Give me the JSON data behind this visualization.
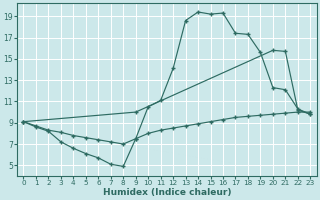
{
  "background_color": "#cce8ea",
  "grid_color": "#ffffff",
  "line_color": "#2e6b62",
  "xlabel": "Humidex (Indice chaleur)",
  "xlim": [
    -0.5,
    23.5
  ],
  "ylim": [
    4.0,
    20.2
  ],
  "yticks": [
    5,
    7,
    9,
    11,
    13,
    15,
    17,
    19
  ],
  "xticks": [
    0,
    1,
    2,
    3,
    4,
    5,
    6,
    7,
    8,
    9,
    10,
    11,
    12,
    13,
    14,
    15,
    16,
    17,
    18,
    19,
    20,
    21,
    22,
    23
  ],
  "line1_bottom": {
    "x": [
      0,
      1,
      2,
      3,
      4,
      5,
      6,
      7,
      8,
      9,
      10,
      11,
      12,
      13,
      14,
      15,
      16,
      17,
      18,
      19,
      20,
      21,
      22,
      23
    ],
    "y": [
      9.1,
      8.7,
      8.3,
      8.1,
      7.8,
      7.6,
      7.4,
      7.2,
      7.0,
      7.5,
      8.0,
      8.3,
      8.5,
      8.7,
      8.9,
      9.1,
      9.3,
      9.5,
      9.6,
      9.7,
      9.8,
      9.9,
      10.0,
      10.0
    ]
  },
  "line2_diagonal": {
    "x": [
      0,
      9,
      20,
      21,
      22,
      23
    ],
    "y": [
      9.1,
      10.0,
      15.8,
      15.7,
      10.2,
      9.8
    ]
  },
  "line3_peak": {
    "x": [
      0,
      1,
      2,
      3,
      4,
      5,
      6,
      7,
      8,
      9,
      10,
      11,
      12,
      13,
      14,
      15,
      16,
      17,
      18,
      19,
      20,
      21,
      22,
      23
    ],
    "y": [
      9.1,
      8.6,
      8.2,
      7.2,
      6.6,
      6.1,
      5.7,
      5.1,
      4.9,
      7.5,
      10.5,
      11.1,
      14.1,
      18.6,
      19.4,
      19.2,
      19.3,
      17.4,
      17.3,
      15.6,
      12.3,
      12.1,
      10.3,
      9.8
    ]
  }
}
